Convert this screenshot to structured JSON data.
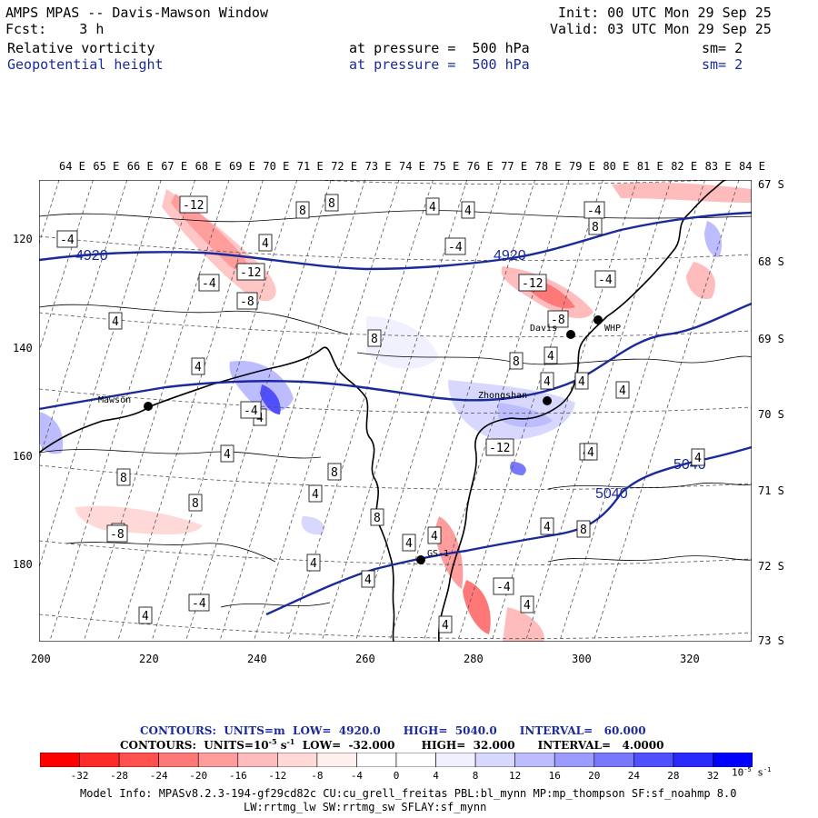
{
  "header": {
    "title": "AMPS MPAS -- Davis-Mawson Window",
    "forecast_label": "Fcst:",
    "forecast_value": "3 h",
    "init": "Init: 00 UTC Mon 29 Sep 25",
    "valid": "Valid: 03 UTC Mon 29 Sep 25",
    "field1": {
      "name": "Relative vorticity",
      "level_label": "at pressure =",
      "level": "500 hPa",
      "smooth": "sm= 2"
    },
    "field2": {
      "name": "Geopotential height",
      "level_label": "at pressure =",
      "level": "500 hPa",
      "smooth": "sm= 2"
    }
  },
  "axes": {
    "lon_labels": [
      "64 E",
      "65 E",
      "66 E",
      "67 E",
      "68 E",
      "69 E",
      "70 E",
      "71 E",
      "72 E",
      "73 E",
      "74 E",
      "75 E",
      "76 E",
      "77 E",
      "78 E",
      "79 E",
      "80 E",
      "81 E",
      "82 E",
      "83 E",
      "84 E"
    ],
    "lat_labels": [
      "67 S",
      "68 S",
      "69 S",
      "70 S",
      "71 S",
      "72 S",
      "73 S"
    ],
    "y_grid_labels": [
      "120",
      "140",
      "160",
      "180"
    ],
    "x_grid_labels": [
      "200",
      "220",
      "240",
      "260",
      "280",
      "300",
      "320"
    ]
  },
  "stations": [
    {
      "name": "Davis"
    },
    {
      "name": "Zhongshan"
    },
    {
      "name": "Mawson"
    },
    {
      "name": "WHP"
    },
    {
      "name": "GS-1"
    }
  ],
  "height_contours": {
    "labels": [
      "4920",
      "4920",
      "5040",
      "5040"
    ],
    "color": "#1a2a9a"
  },
  "vorticity_labels": [
    "-12",
    "-4",
    "-12",
    "-4",
    "-8",
    "-4",
    "4",
    "8",
    "8",
    "4",
    "-4",
    "-12",
    "-8",
    "-4",
    "8",
    "4",
    "4",
    "4",
    "8",
    "4",
    "8",
    "4",
    "-4",
    "4",
    "8",
    "8",
    "4",
    "8",
    "8",
    "4",
    "-8",
    "4",
    "4",
    "4",
    "4",
    "4",
    "-4",
    "4",
    "8",
    "-4",
    "4",
    "4",
    "4",
    "4",
    "-12",
    "4",
    "4",
    "4",
    "8"
  ],
  "contour_info": {
    "line1": {
      "label": "CONTOURS:",
      "units": "UNITS=m",
      "low": "LOW=  4920.0",
      "high": "HIGH=  5040.0",
      "interval": "INTERVAL=   60.000"
    },
    "line2": {
      "label": "CONTOURS:",
      "units": "UNITS=10",
      "units_exp": "-5",
      "units_suffix": " s",
      "units_suffix_exp": "-1",
      "low": "LOW=  -32.000",
      "high": "HIGH=  32.000",
      "interval": "INTERVAL=   4.0000"
    }
  },
  "colorbar": {
    "ticks": [
      "-32",
      "-28",
      "-24",
      "-20",
      "-16",
      "-12",
      "-8",
      "-4",
      "0",
      "4",
      "8",
      "12",
      "16",
      "20",
      "24",
      "28",
      "32"
    ],
    "unit": "10",
    "unit_exp": "-5",
    "unit_suffix": " s",
    "unit_suffix_exp": "-1",
    "colors": [
      "#ff0000",
      "#ff2a2a",
      "#ff5050",
      "#ff7878",
      "#ff9c9c",
      "#ffbcbc",
      "#ffd8d8",
      "#fff0f0",
      "#ffffff",
      "#ffffff",
      "#f0f0ff",
      "#d8d8ff",
      "#bcbcff",
      "#9c9cff",
      "#7878ff",
      "#5050ff",
      "#2a2aff",
      "#0000ff"
    ]
  },
  "model_info": {
    "line1": "Model Info: MPASv8.2.3-194-gf29cd82c CU:cu_grell_freitas PBL:bl_mynn MP:mp_thompson SF:sf_noahmp 8.0",
    "line2": "LW:rrtmg_lw SW:rrtmg_sw SFLAY:sf_mynn"
  }
}
